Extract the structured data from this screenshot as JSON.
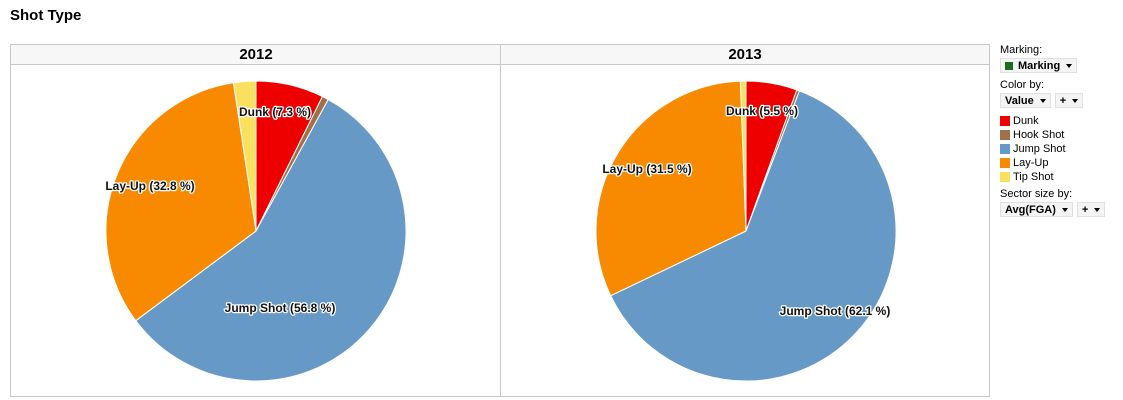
{
  "page": {
    "title": "Shot Type"
  },
  "legend": {
    "marking_label": "Marking:",
    "marking_value": "Marking",
    "marking_color": "#1a6e1a",
    "color_by_label": "Color by:",
    "color_by_value": "Value",
    "color_by_extra": "+",
    "sector_size_label": "Sector size by:",
    "sector_size_value": "Avg(FGA)",
    "sector_size_extra": "+",
    "items": [
      {
        "label": "Dunk",
        "color": "#ee0000"
      },
      {
        "label": "Hook Shot",
        "color": "#a0704a"
      },
      {
        "label": "Jump Shot",
        "color": "#6699c6"
      },
      {
        "label": "Lay-Up",
        "color": "#f78a00"
      },
      {
        "label": "Tip Shot",
        "color": "#f9e05e"
      }
    ]
  },
  "chart_data": {
    "type": "pie",
    "title": "Shot Type",
    "categories": [
      "Dunk",
      "Hook Shot",
      "Jump Shot",
      "Lay-Up",
      "Tip Shot"
    ],
    "colors": [
      "#ee0000",
      "#a0704a",
      "#6699c6",
      "#f78a00",
      "#f9e05e"
    ],
    "panels": [
      {
        "name": "2012",
        "values": [
          7.3,
          0.7,
          56.8,
          32.8,
          2.4
        ],
        "labels": [
          "Dunk (7.3 %)",
          "",
          "Jump Shot (56.8 %)",
          "Lay-Up (32.8 %)",
          ""
        ]
      },
      {
        "name": "2013",
        "values": [
          5.5,
          0.3,
          62.1,
          31.5,
          0.6
        ],
        "labels": [
          "Dunk (5.5 %)",
          "",
          "Jump Shot (62.1 %)",
          "Lay-Up (31.5 %)",
          ""
        ]
      }
    ]
  }
}
